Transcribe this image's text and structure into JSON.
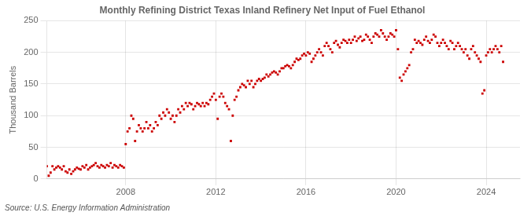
{
  "chart_data": {
    "type": "scatter",
    "title": "Monthly Refining District Texas Inland Refinery Net Input of Fuel Ethanol",
    "ylabel": "Thousand Barrels",
    "annotations": [
      "Source: U.S. Energy Information Administration"
    ],
    "color": "#cc0000",
    "marker": "square",
    "grid": true,
    "ylim": [
      0,
      250
    ],
    "yticks": [
      0,
      50,
      100,
      150,
      200,
      250
    ],
    "xlim": [
      2004.5,
      2025.5
    ],
    "xticks": [
      2008,
      2012,
      2016,
      2020,
      2024
    ],
    "x": [
      2004.5,
      2004.583,
      2004.667,
      2004.75,
      2004.833,
      2004.917,
      2005.0,
      2005.083,
      2005.167,
      2005.25,
      2005.333,
      2005.417,
      2005.5,
      2005.583,
      2005.667,
      2005.75,
      2005.833,
      2005.917,
      2006.0,
      2006.083,
      2006.167,
      2006.25,
      2006.333,
      2006.417,
      2006.5,
      2006.583,
      2006.667,
      2006.75,
      2006.833,
      2006.917,
      2007.0,
      2007.083,
      2007.167,
      2007.25,
      2007.333,
      2007.417,
      2007.5,
      2007.583,
      2007.667,
      2007.75,
      2007.833,
      2007.917,
      2008.0,
      2008.083,
      2008.167,
      2008.25,
      2008.333,
      2008.417,
      2008.5,
      2008.583,
      2008.667,
      2008.75,
      2008.833,
      2008.917,
      2009.0,
      2009.083,
      2009.167,
      2009.25,
      2009.333,
      2009.417,
      2009.5,
      2009.583,
      2009.667,
      2009.75,
      2009.833,
      2009.917,
      2010.0,
      2010.083,
      2010.167,
      2010.25,
      2010.333,
      2010.417,
      2010.5,
      2010.583,
      2010.667,
      2010.75,
      2010.833,
      2010.917,
      2011.0,
      2011.083,
      2011.167,
      2011.25,
      2011.333,
      2011.417,
      2011.5,
      2011.583,
      2011.667,
      2011.75,
      2011.833,
      2011.917,
      2012.0,
      2012.083,
      2012.167,
      2012.25,
      2012.333,
      2012.417,
      2012.5,
      2012.583,
      2012.667,
      2012.75,
      2012.833,
      2012.917,
      2013.0,
      2013.083,
      2013.167,
      2013.25,
      2013.333,
      2013.417,
      2013.5,
      2013.583,
      2013.667,
      2013.75,
      2013.833,
      2013.917,
      2014.0,
      2014.083,
      2014.167,
      2014.25,
      2014.333,
      2014.417,
      2014.5,
      2014.583,
      2014.667,
      2014.75,
      2014.833,
      2014.917,
      2015.0,
      2015.083,
      2015.167,
      2015.25,
      2015.333,
      2015.417,
      2015.5,
      2015.583,
      2015.667,
      2015.75,
      2015.833,
      2015.917,
      2016.0,
      2016.083,
      2016.167,
      2016.25,
      2016.333,
      2016.417,
      2016.5,
      2016.583,
      2016.667,
      2016.75,
      2016.833,
      2016.917,
      2017.0,
      2017.083,
      2017.167,
      2017.25,
      2017.333,
      2017.417,
      2017.5,
      2017.583,
      2017.667,
      2017.75,
      2017.833,
      2017.917,
      2018.0,
      2018.083,
      2018.167,
      2018.25,
      2018.333,
      2018.417,
      2018.5,
      2018.583,
      2018.667,
      2018.75,
      2018.833,
      2018.917,
      2019.0,
      2019.083,
      2019.167,
      2019.25,
      2019.333,
      2019.417,
      2019.5,
      2019.583,
      2019.667,
      2019.75,
      2019.833,
      2019.917,
      2020.0,
      2020.083,
      2020.167,
      2020.25,
      2020.333,
      2020.417,
      2020.5,
      2020.583,
      2020.667,
      2020.75,
      2020.833,
      2020.917,
      2021.0,
      2021.083,
      2021.167,
      2021.25,
      2021.333,
      2021.417,
      2021.5,
      2021.583,
      2021.667,
      2021.75,
      2021.833,
      2021.917,
      2022.0,
      2022.083,
      2022.167,
      2022.25,
      2022.333,
      2022.417,
      2022.5,
      2022.583,
      2022.667,
      2022.75,
      2022.833,
      2022.917,
      2023.0,
      2023.083,
      2023.167,
      2023.25,
      2023.333,
      2023.417,
      2023.5,
      2023.583,
      2023.667,
      2023.75,
      2023.833,
      2023.917,
      2024.0,
      2024.083,
      2024.167,
      2024.25,
      2024.333,
      2024.417,
      2024.5,
      2024.583,
      2024.667,
      2024.75
    ],
    "values": [
      20,
      5,
      10,
      20,
      15,
      18,
      20,
      18,
      15,
      20,
      12,
      10,
      15,
      8,
      12,
      15,
      18,
      16,
      15,
      20,
      18,
      22,
      15,
      18,
      20,
      22,
      25,
      20,
      18,
      22,
      20,
      18,
      22,
      20,
      25,
      18,
      22,
      20,
      18,
      22,
      20,
      18,
      55,
      75,
      80,
      100,
      95,
      60,
      75,
      85,
      80,
      75,
      80,
      90,
      80,
      85,
      75,
      80,
      90,
      85,
      100,
      95,
      105,
      100,
      110,
      105,
      95,
      100,
      90,
      100,
      110,
      105,
      115,
      110,
      120,
      115,
      120,
      118,
      110,
      115,
      120,
      118,
      115,
      120,
      115,
      120,
      118,
      125,
      130,
      135,
      125,
      95,
      130,
      135,
      130,
      120,
      115,
      110,
      60,
      100,
      125,
      130,
      140,
      145,
      150,
      148,
      145,
      155,
      150,
      155,
      145,
      150,
      155,
      158,
      155,
      158,
      160,
      165,
      162,
      165,
      168,
      170,
      168,
      165,
      170,
      175,
      175,
      178,
      180,
      178,
      175,
      180,
      185,
      190,
      188,
      190,
      195,
      198,
      195,
      200,
      198,
      185,
      190,
      195,
      200,
      205,
      200,
      195,
      210,
      215,
      210,
      205,
      200,
      215,
      218,
      212,
      208,
      215,
      220,
      218,
      215,
      220,
      215,
      220,
      225,
      218,
      222,
      225,
      218,
      220,
      228,
      225,
      220,
      215,
      225,
      230,
      228,
      225,
      235,
      230,
      225,
      220,
      225,
      230,
      228,
      225,
      235,
      205,
      160,
      155,
      165,
      170,
      175,
      180,
      200,
      205,
      220,
      215,
      218,
      215,
      212,
      220,
      225,
      218,
      215,
      220,
      228,
      225,
      215,
      210,
      215,
      220,
      215,
      210,
      205,
      218,
      215,
      205,
      210,
      215,
      210,
      205,
      200,
      205,
      195,
      190,
      205,
      210,
      200,
      195,
      190,
      185,
      135,
      140,
      195,
      200,
      205,
      200,
      205,
      210,
      205,
      200,
      210,
      185
    ]
  }
}
